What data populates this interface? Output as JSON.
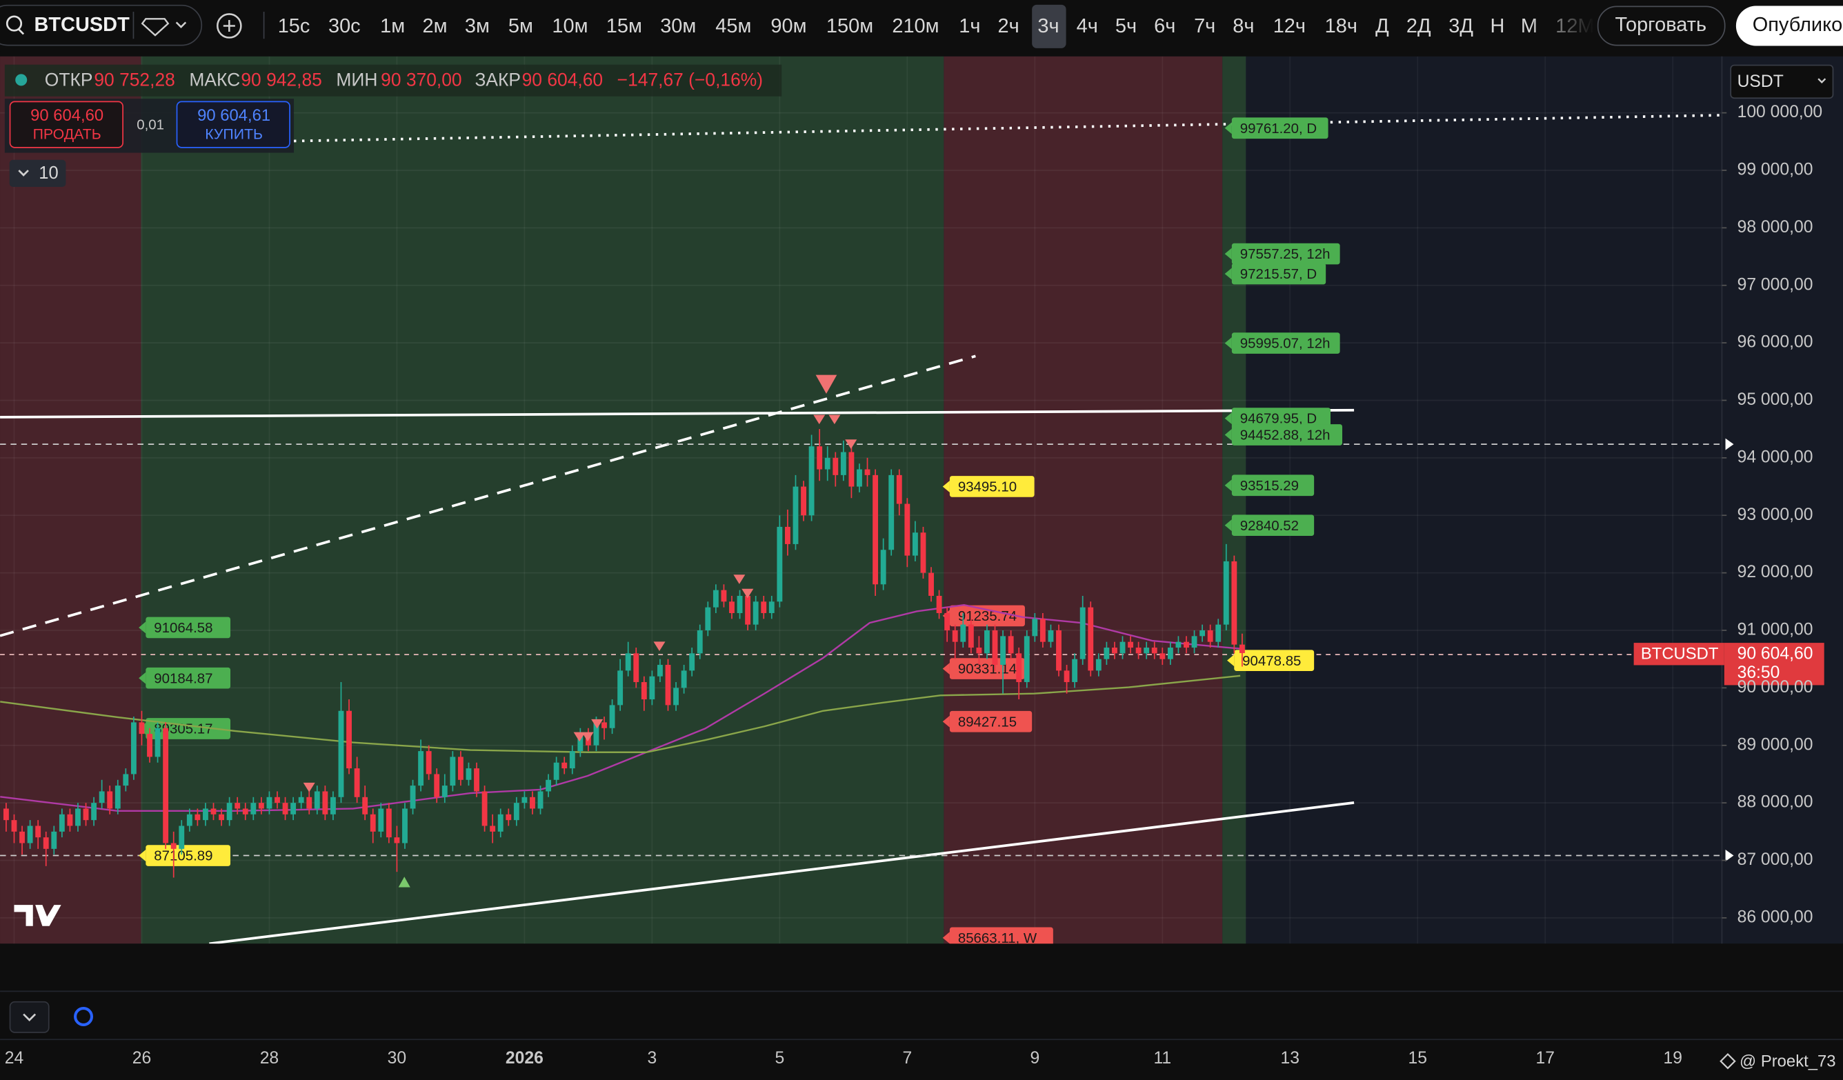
{
  "toolbar": {
    "symbol": "BTCUSDT",
    "intervals": [
      "15с",
      "30с",
      "1м",
      "2м",
      "3м",
      "5м",
      "10м",
      "15м",
      "30м",
      "45м",
      "90м",
      "150м",
      "210м",
      "1ч",
      "2ч",
      "3ч",
      "4ч",
      "5ч",
      "6ч",
      "7ч",
      "8ч",
      "12ч",
      "18ч",
      "Д",
      "2Д",
      "3Д",
      "Н",
      "М",
      "12М"
    ],
    "trade_button": "Торговать",
    "publish_button": "Опублико"
  },
  "legend": {
    "open_label": "ОТКР",
    "open": "90 752,28",
    "high_label": "МАКС",
    "high": "90 942,85",
    "low_label": "МИН",
    "low": "90 370,00",
    "close_label": "ЗАКР",
    "close": "90 604,60",
    "change": "−147,67 (−0,16%)"
  },
  "order": {
    "sell_price": "90 604,60",
    "sell_label": "ПРОДАТЬ",
    "spread": "0,01",
    "buy_price": "90 604,61",
    "buy_label": "КУПИТЬ"
  },
  "indicators_toggle": "10",
  "currency": "USDT",
  "price_tag": {
    "symbol": "BTCUSDT",
    "price": "90 604,60",
    "countdown": "36:50"
  },
  "annotations": [
    "99761.20, D",
    "97557.25, 12h",
    "97215.57, D",
    "95995.07, 12h",
    "94679.95, D",
    "94452.88, 12h",
    "93515.29",
    "92840.52",
    "91064.58",
    "90184.87",
    "89305.17",
    "87105.89",
    "93495.10",
    "91235.74",
    "90331.14",
    "89427.15",
    "85663.11, W",
    "90478.85"
  ],
  "watermark": "@ Proekt_73",
  "chart_data": {
    "type": "candlestick",
    "up_color": "#22ab94",
    "down_color": "#f23645",
    "xlim": [
      -0.221,
      26.77
    ],
    "xticks": [
      {
        "value": 0,
        "label": "24"
      },
      {
        "value": 2,
        "label": "26"
      },
      {
        "value": 4,
        "label": "28"
      },
      {
        "value": 6,
        "label": "30"
      },
      {
        "value": 8,
        "label": "2026"
      },
      {
        "value": 10,
        "label": "3"
      },
      {
        "value": 12,
        "label": "5"
      },
      {
        "value": 14,
        "label": "7"
      },
      {
        "value": 16,
        "label": "9"
      },
      {
        "value": 18,
        "label": "11"
      },
      {
        "value": 20,
        "label": "13"
      },
      {
        "value": 22,
        "label": "15"
      },
      {
        "value": 24,
        "label": "17"
      },
      {
        "value": 26,
        "label": "19"
      }
    ],
    "ylim": [
      85551,
      100981
    ],
    "yticks": [
      {
        "value": 86000,
        "label": "86 000,00"
      },
      {
        "value": 87000,
        "label": "87 000,00"
      },
      {
        "value": 88000,
        "label": "88 000,00"
      },
      {
        "value": 89000,
        "label": "89 000,00"
      },
      {
        "value": 90000,
        "label": "90 000,00"
      },
      {
        "value": 91000,
        "label": "91 000,00"
      },
      {
        "value": 92000,
        "label": "92 000,00"
      },
      {
        "value": 93000,
        "label": "93 000,00"
      },
      {
        "value": 94000,
        "label": "94 000,00"
      },
      {
        "value": 95000,
        "label": "95 000,00"
      },
      {
        "value": 96000,
        "label": "96 000,00"
      },
      {
        "value": 97000,
        "label": "97 000,00"
      },
      {
        "value": 98000,
        "label": "98 000,00"
      },
      {
        "value": 99000,
        "label": "99 000,00"
      },
      {
        "value": 100000,
        "label": "100 000,00"
      }
    ],
    "grid": true,
    "x": [
      -0.125,
      0,
      0.125,
      0.25,
      0.375,
      0.5,
      0.625,
      0.75,
      0.875,
      1,
      1.125,
      1.25,
      1.375,
      1.5,
      1.625,
      1.75,
      1.875,
      2,
      2.125,
      2.25,
      2.375,
      2.5,
      2.625,
      2.75,
      2.875,
      3,
      3.125,
      3.25,
      3.375,
      3.5,
      3.625,
      3.75,
      3.875,
      4,
      4.125,
      4.25,
      4.375,
      4.5,
      4.625,
      4.75,
      4.875,
      5,
      5.125,
      5.25,
      5.375,
      5.5,
      5.625,
      5.75,
      5.875,
      6,
      6.125,
      6.25,
      6.375,
      6.5,
      6.625,
      6.75,
      6.875,
      7,
      7.125,
      7.25,
      7.375,
      7.5,
      7.625,
      7.75,
      7.875,
      8,
      8.125,
      8.25,
      8.375,
      8.5,
      8.625,
      8.75,
      8.875,
      9,
      9.125,
      9.25,
      9.375,
      9.5,
      9.625,
      9.75,
      9.875,
      10,
      10.125,
      10.25,
      10.375,
      10.5,
      10.625,
      10.75,
      10.875,
      11,
      11.125,
      11.25,
      11.375,
      11.5,
      11.625,
      11.75,
      11.875,
      12,
      12.125,
      12.25,
      12.375,
      12.5,
      12.625,
      12.75,
      12.875,
      13,
      13.125,
      13.25,
      13.375,
      13.5,
      13.625,
      13.75,
      13.875,
      14,
      14.125,
      14.25,
      14.375,
      14.5,
      14.625,
      14.75,
      14.875,
      15,
      15.125,
      15.25,
      15.375,
      15.5,
      15.625,
      15.75,
      15.875,
      16,
      16.125,
      16.25,
      16.375,
      16.5,
      16.625,
      16.75,
      16.875,
      17,
      17.125,
      17.25,
      17.375,
      17.5,
      17.625,
      17.75,
      17.875,
      18,
      18.125,
      18.25,
      18.375,
      18.5,
      18.625,
      18.75,
      18.875,
      19,
      19.125,
      19.25
    ],
    "candles": [
      [
        87900,
        88000,
        87500,
        87700
      ],
      [
        87700,
        87800,
        87300,
        87500
      ],
      [
        87500,
        87600,
        87100,
        87300
      ],
      [
        87300,
        87700,
        87200,
        87600
      ],
      [
        87600,
        87700,
        87200,
        87400
      ],
      [
        87400,
        87500,
        86900,
        87200
      ],
      [
        87200,
        87600,
        87100,
        87500
      ],
      [
        87500,
        87900,
        87400,
        87800
      ],
      [
        87800,
        87900,
        87500,
        87600
      ],
      [
        87600,
        88000,
        87500,
        87900
      ],
      [
        87900,
        88000,
        87600,
        87700
      ],
      [
        87700,
        88100,
        87600,
        88000
      ],
      [
        88000,
        88400,
        87900,
        88200
      ],
      [
        88200,
        88300,
        87800,
        87900
      ],
      [
        87900,
        88400,
        87800,
        88300
      ],
      [
        88300,
        88600,
        88200,
        88500
      ],
      [
        88500,
        89500,
        88400,
        89400
      ],
      [
        89400,
        89600,
        89000,
        89200
      ],
      [
        89200,
        89300,
        88700,
        88800
      ],
      [
        88800,
        89400,
        88700,
        89300
      ],
      [
        89300,
        89400,
        87200,
        87300
      ],
      [
        87300,
        87500,
        86700,
        87200
      ],
      [
        87200,
        87700,
        87100,
        87600
      ],
      [
        87600,
        87900,
        87500,
        87800
      ],
      [
        87800,
        87900,
        87600,
        87700
      ],
      [
        87700,
        88000,
        87600,
        87900
      ],
      [
        87900,
        88000,
        87700,
        87800
      ],
      [
        87800,
        87900,
        87600,
        87700
      ],
      [
        87700,
        88100,
        87600,
        88000
      ],
      [
        88000,
        88100,
        87800,
        87900
      ],
      [
        87900,
        88000,
        87700,
        87800
      ],
      [
        87800,
        88100,
        87700,
        88000
      ],
      [
        88000,
        88100,
        87800,
        87900
      ],
      [
        87900,
        88200,
        87800,
        88100
      ],
      [
        88100,
        88200,
        87900,
        88000
      ],
      [
        88000,
        88100,
        87700,
        87800
      ],
      [
        87800,
        88100,
        87700,
        88000
      ],
      [
        88000,
        88200,
        87900,
        88100
      ],
      [
        88100,
        88200,
        87800,
        87900
      ],
      [
        87900,
        88300,
        87800,
        88200
      ],
      [
        88200,
        88300,
        87700,
        87800
      ],
      [
        87800,
        88200,
        87700,
        88100
      ],
      [
        88100,
        90100,
        88000,
        89600
      ],
      [
        89600,
        89800,
        88500,
        88600
      ],
      [
        88600,
        88800,
        88000,
        88100
      ],
      [
        88100,
        88300,
        87700,
        87800
      ],
      [
        87800,
        87900,
        87300,
        87500
      ],
      [
        87500,
        88000,
        87400,
        87900
      ],
      [
        87900,
        88000,
        87300,
        87400
      ],
      [
        87400,
        87600,
        86800,
        87300
      ],
      [
        87300,
        88000,
        87200,
        87900
      ],
      [
        87900,
        88400,
        87800,
        88300
      ],
      [
        88300,
        89100,
        88200,
        88900
      ],
      [
        88900,
        89000,
        88400,
        88500
      ],
      [
        88500,
        88600,
        88000,
        88100
      ],
      [
        88100,
        88500,
        88000,
        88300
      ],
      [
        88300,
        88900,
        88200,
        88800
      ],
      [
        88800,
        88900,
        88300,
        88400
      ],
      [
        88400,
        88700,
        88300,
        88600
      ],
      [
        88600,
        88700,
        88100,
        88200
      ],
      [
        88200,
        88300,
        87500,
        87600
      ],
      [
        87600,
        87800,
        87300,
        87500
      ],
      [
        87500,
        87900,
        87400,
        87800
      ],
      [
        87800,
        87900,
        87600,
        87700
      ],
      [
        87700,
        88100,
        87600,
        88000
      ],
      [
        88000,
        88200,
        87900,
        88100
      ],
      [
        88100,
        88200,
        87800,
        87900
      ],
      [
        87900,
        88300,
        87800,
        88200
      ],
      [
        88200,
        88500,
        88100,
        88400
      ],
      [
        88400,
        88800,
        88300,
        88700
      ],
      [
        88700,
        88800,
        88500,
        88600
      ],
      [
        88600,
        89000,
        88500,
        88900
      ],
      [
        88900,
        89300,
        88800,
        89200
      ],
      [
        89200,
        89300,
        88900,
        89000
      ],
      [
        89000,
        89500,
        88900,
        89400
      ],
      [
        89400,
        89500,
        89100,
        89300
      ],
      [
        89300,
        89800,
        89200,
        89700
      ],
      [
        89700,
        90500,
        89600,
        90300
      ],
      [
        90300,
        90800,
        90200,
        90600
      ],
      [
        90600,
        90700,
        90000,
        90100
      ],
      [
        90100,
        90200,
        89600,
        89800
      ],
      [
        89800,
        90300,
        89700,
        90200
      ],
      [
        90200,
        90500,
        90100,
        90400
      ],
      [
        90400,
        90500,
        89600,
        89700
      ],
      [
        89700,
        90100,
        89600,
        90000
      ],
      [
        90000,
        90400,
        89900,
        90300
      ],
      [
        90300,
        90700,
        90200,
        90600
      ],
      [
        90600,
        91100,
        90500,
        91000
      ],
      [
        91000,
        91500,
        90900,
        91400
      ],
      [
        91400,
        91800,
        91300,
        91700
      ],
      [
        91700,
        91800,
        91400,
        91500
      ],
      [
        91500,
        91600,
        91200,
        91300
      ],
      [
        91300,
        91700,
        91200,
        91600
      ],
      [
        91600,
        91700,
        91000,
        91100
      ],
      [
        91100,
        91600,
        91000,
        91500
      ],
      [
        91500,
        91600,
        91200,
        91300
      ],
      [
        91300,
        91600,
        91200,
        91500
      ],
      [
        91500,
        93000,
        91400,
        92800
      ],
      [
        92800,
        93100,
        92300,
        92500
      ],
      [
        92500,
        93700,
        92400,
        93500
      ],
      [
        93500,
        93600,
        92900,
        93000
      ],
      [
        93000,
        94400,
        92900,
        94200
      ],
      [
        94200,
        94500,
        93600,
        93800
      ],
      [
        93800,
        94200,
        93600,
        94000
      ],
      [
        94000,
        94100,
        93500,
        93700
      ],
      [
        93700,
        94300,
        93600,
        94100
      ],
      [
        94100,
        94200,
        93300,
        93500
      ],
      [
        93500,
        93900,
        93400,
        93800
      ],
      [
        93800,
        94000,
        93500,
        93700
      ],
      [
        93700,
        93800,
        91600,
        91800
      ],
      [
        91800,
        92600,
        91700,
        92400
      ],
      [
        92400,
        93800,
        92300,
        93700
      ],
      [
        93700,
        93800,
        93000,
        93200
      ],
      [
        93200,
        93300,
        92100,
        92300
      ],
      [
        92300,
        92900,
        92200,
        92700
      ],
      [
        92700,
        92800,
        91900,
        92000
      ],
      [
        92000,
        92100,
        91500,
        91600
      ],
      [
        91600,
        91700,
        91200,
        91300
      ],
      [
        91300,
        91400,
        90800,
        91000
      ],
      [
        91000,
        91100,
        90500,
        90800
      ],
      [
        90800,
        91300,
        90700,
        91100
      ],
      [
        91100,
        91200,
        90600,
        90700
      ],
      [
        90700,
        90900,
        90400,
        90600
      ],
      [
        90600,
        91100,
        90500,
        91000
      ],
      [
        91000,
        91100,
        90300,
        90400
      ],
      [
        90400,
        91000,
        89900,
        90900
      ],
      [
        90900,
        91000,
        90500,
        90600
      ],
      [
        90600,
        90700,
        89800,
        90100
      ],
      [
        90100,
        91000,
        90000,
        90900
      ],
      [
        90900,
        91300,
        90800,
        91200
      ],
      [
        91200,
        91300,
        90700,
        90800
      ],
      [
        90800,
        91100,
        90700,
        91000
      ],
      [
        91000,
        91100,
        90200,
        90300
      ],
      [
        90300,
        90400,
        89900,
        90100
      ],
      [
        90100,
        90600,
        90000,
        90500
      ],
      [
        90500,
        91600,
        90400,
        91400
      ],
      [
        91400,
        91500,
        90200,
        90300
      ],
      [
        90300,
        90600,
        90200,
        90500
      ],
      [
        90500,
        90800,
        90400,
        90700
      ],
      [
        90700,
        90800,
        90500,
        90600
      ],
      [
        90600,
        90900,
        90500,
        90800
      ],
      [
        90800,
        90900,
        90600,
        90700
      ],
      [
        90700,
        90800,
        90500,
        90600
      ],
      [
        90600,
        90800,
        90500,
        90700
      ],
      [
        90700,
        90800,
        90500,
        90600
      ],
      [
        90600,
        90700,
        90400,
        90500
      ],
      [
        90500,
        90800,
        90400,
        90700
      ],
      [
        90700,
        90900,
        90600,
        90800
      ],
      [
        90800,
        90900,
        90600,
        90700
      ],
      [
        90700,
        91000,
        90600,
        90900
      ],
      [
        90900,
        91100,
        90800,
        91000
      ],
      [
        91000,
        91100,
        90700,
        90800
      ],
      [
        90800,
        91200,
        90700,
        91100
      ],
      [
        91100,
        92500,
        91000,
        92200
      ],
      [
        92200,
        92300,
        90600,
        90752.28
      ],
      [
        90752.28,
        90942.85,
        90370,
        90604.6
      ]
    ],
    "lines": [
      {
        "color": "#b03aa6",
        "x": [
          -0.22,
          1.62,
          3.46,
          5.31,
          7.15,
          8.25,
          8.99,
          9.91,
          10.83,
          11.76,
          12.68,
          13.41,
          14.15,
          14.89,
          15.81,
          16.73,
          17.84,
          19.22
        ],
        "values": [
          88105,
          87860,
          87860,
          87900,
          88170,
          88230,
          88470,
          88880,
          89290,
          89900,
          90520,
          91130,
          91330,
          91440,
          91230,
          91130,
          90820,
          90680
        ]
      },
      {
        "color": "#8aa64a",
        "x": [
          -0.22,
          1.62,
          3.46,
          5.31,
          7.15,
          8.99,
          9.91,
          10.83,
          11.76,
          12.68,
          13.6,
          14.52,
          15.99,
          17.47,
          19.22
        ],
        "values": [
          89760,
          89490,
          89250,
          89050,
          88920,
          88880,
          88880,
          89090,
          89330,
          89600,
          89740,
          89870,
          89900,
          90010,
          90210
        ]
      }
    ]
  }
}
